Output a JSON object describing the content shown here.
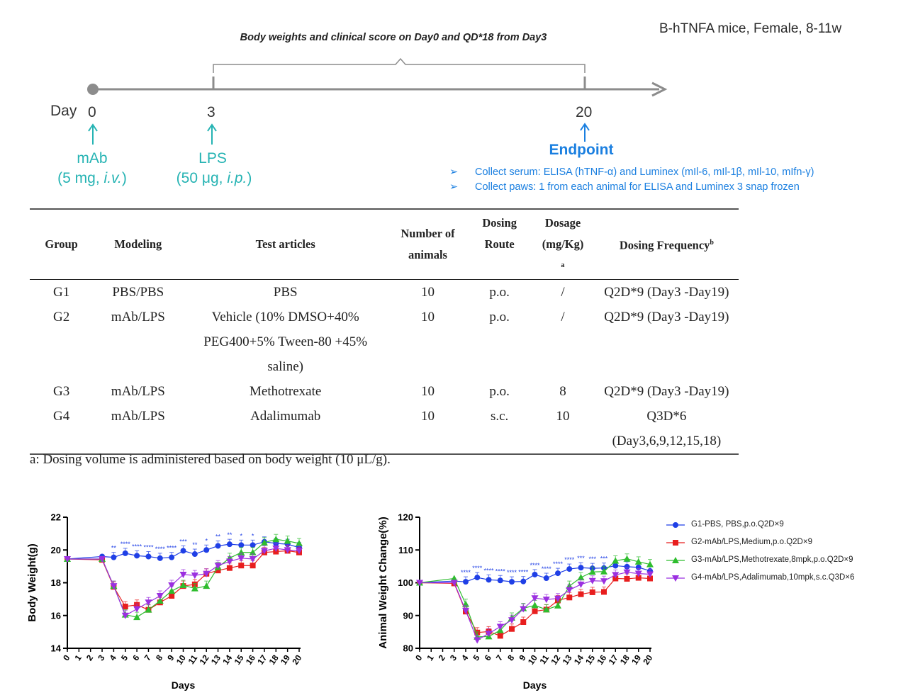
{
  "header_note": "B-hTNFA mice,  Female,  8-11w",
  "timeline": {
    "title": "Body weights and clinical score on Day0 and QD*18 from Day3",
    "day_word": "Day",
    "days": [
      "0",
      "3",
      "20"
    ],
    "mab": {
      "name": "mAb",
      "dose_prefix": "(5 mg, ",
      "route": "i.v.",
      "suffix": ")"
    },
    "lps": {
      "name": "LPS",
      "dose_prefix": "(50 μg, ",
      "route": "i.p.",
      "suffix": ")"
    },
    "endpoint": "Endpoint",
    "arrow_glyph": "➢",
    "bullets": [
      "Collect serum: ELISA (hTNF-α) and Luminex (mIl-6, mIl-1β, mIl-10, mIfn-γ)",
      "Collect paws: 1 from each animal for ELISA and Luminex 3 snap frozen"
    ],
    "colors": {
      "teal": "#25b3b3",
      "blue": "#1a7fe0",
      "line": "#8c8c8c"
    }
  },
  "table": {
    "headers": {
      "group": "Group",
      "modeling": "Modeling",
      "test_articles": "Test articles",
      "number_line1": "Number of",
      "number_line2": "animals",
      "route_line1": "Dosing",
      "route_line2": "Route",
      "dosage_line1": "Dosage",
      "dosage_line2": "(mg/Kg)",
      "dosage_sup": "a",
      "frequency": "Dosing Frequency",
      "frequency_sup": "b"
    },
    "rows": [
      {
        "group": "G1",
        "modeling": "PBS/PBS",
        "article": [
          "PBS"
        ],
        "n": "10",
        "route": "p.o.",
        "dosage": "/",
        "freq": [
          "Q2D*9 (Day3 -Day19)"
        ]
      },
      {
        "group": "G2",
        "modeling": "mAb/LPS",
        "article": [
          "Vehicle (10% DMSO+40%",
          "PEG400+5% Tween-80 +45%",
          "saline)"
        ],
        "n": "10",
        "route": "p.o.",
        "dosage": "/",
        "freq": [
          "Q2D*9 (Day3 -Day19)"
        ]
      },
      {
        "group": "G3",
        "modeling": "mAb/LPS",
        "article": [
          "Methotrexate"
        ],
        "n": "10",
        "route": "p.o.",
        "dosage": "8",
        "freq": [
          "Q2D*9 (Day3 -Day19)"
        ]
      },
      {
        "group": "G4",
        "modeling": "mAb/LPS",
        "article": [
          "Adalimumab"
        ],
        "n": "10",
        "route": "s.c.",
        "dosage": "10",
        "freq": [
          "Q3D*6",
          "(Day3,6,9,12,15,18)"
        ]
      }
    ],
    "footnote": "a: Dosing volume is administered based on body weight (10 μL/g)."
  },
  "chart_data": [
    {
      "type": "line",
      "title": "",
      "xlabel": "Days",
      "ylabel": "Body Weight(g)",
      "ylim": [
        14,
        22
      ],
      "yticks": [
        14,
        16,
        18,
        20,
        22
      ],
      "x": [
        0,
        3,
        4,
        5,
        6,
        7,
        8,
        9,
        10,
        11,
        12,
        13,
        14,
        15,
        16,
        17,
        18,
        19,
        20
      ],
      "series": [
        {
          "name": "G1-PBS, PBS,p.o.Q2D×9",
          "color": "#1f3fe6",
          "marker": "circle",
          "values": [
            19.45,
            19.6,
            19.55,
            19.8,
            19.65,
            19.6,
            19.5,
            19.55,
            19.95,
            19.75,
            20.0,
            20.25,
            20.35,
            20.3,
            20.3,
            20.5,
            20.4,
            20.35,
            20.15
          ]
        },
        {
          "name": "G2-mAb/LPS,Medium,p.o.Q2D×9",
          "color": "#e81e1e",
          "marker": "square",
          "values": [
            19.45,
            19.4,
            17.75,
            16.55,
            16.65,
            16.35,
            16.8,
            17.2,
            17.8,
            17.9,
            18.55,
            18.75,
            18.9,
            19.05,
            19.05,
            19.85,
            19.9,
            19.95,
            19.85
          ]
        },
        {
          "name": "G3-mAb/LPS,Methotrexate,8mpk,p.o.Q2D×9",
          "color": "#2ebd2e",
          "marker": "triangle-up",
          "values": [
            19.45,
            19.45,
            17.8,
            16.05,
            15.9,
            16.35,
            16.9,
            17.5,
            17.85,
            17.65,
            17.8,
            18.95,
            19.5,
            19.85,
            19.85,
            20.45,
            20.65,
            20.55,
            20.4
          ]
        },
        {
          "name": "G4-mAb/LPS,Adalimumab,10mpk,s.c.Q3D×6",
          "color": "#9b30e0",
          "marker": "triangle-down",
          "values": [
            19.45,
            19.45,
            17.8,
            16.0,
            16.4,
            16.8,
            17.2,
            17.85,
            18.5,
            18.45,
            18.55,
            19.05,
            19.3,
            19.5,
            19.45,
            19.95,
            20.1,
            20.0,
            19.95
          ]
        }
      ],
      "annotations": [
        {
          "x": 4,
          "text": "**"
        },
        {
          "x": 5,
          "text": "****"
        },
        {
          "x": 6,
          "text": "****"
        },
        {
          "x": 7,
          "text": "****"
        },
        {
          "x": 8,
          "text": "****"
        },
        {
          "x": 9,
          "text": "****"
        },
        {
          "x": 10,
          "text": "***"
        },
        {
          "x": 11,
          "text": "**"
        },
        {
          "x": 12,
          "text": "*"
        },
        {
          "x": 13,
          "text": "**"
        },
        {
          "x": 14,
          "text": "**"
        },
        {
          "x": 15,
          "text": "*"
        },
        {
          "x": 16,
          "text": "*"
        }
      ]
    },
    {
      "type": "line",
      "title": "",
      "xlabel": "Days",
      "ylabel": "Animal Weight Change(%)",
      "ylim": [
        80,
        120
      ],
      "yticks": [
        80,
        90,
        100,
        110,
        120
      ],
      "x": [
        0,
        3,
        4,
        5,
        6,
        7,
        8,
        9,
        10,
        11,
        12,
        13,
        14,
        15,
        16,
        17,
        18,
        19,
        20
      ],
      "series": [
        {
          "name": "G1-PBS, PBS,p.o.Q2D×9",
          "color": "#1f3fe6",
          "marker": "circle",
          "values": [
            100,
            100.5,
            100.3,
            101.6,
            100.9,
            100.7,
            100.3,
            100.4,
            102.5,
            101.4,
            102.9,
            104.2,
            104.6,
            104.4,
            104.5,
            105.2,
            104.9,
            104.7,
            103.6
          ]
        },
        {
          "name": "G2-mAb/LPS,Medium,p.o.Q2D×9",
          "color": "#e81e1e",
          "marker": "square",
          "values": [
            100,
            99.8,
            91.2,
            84.8,
            85.1,
            83.8,
            85.9,
            88.0,
            91.3,
            91.8,
            94.6,
            95.5,
            96.5,
            97.1,
            97.2,
            101.3,
            101.2,
            101.5,
            101.3
          ]
        },
        {
          "name": "G3-mAb/LPS,Methotrexate,8mpk,p.o.Q2D×9",
          "color": "#2ebd2e",
          "marker": "triangle-up",
          "values": [
            100,
            101.3,
            93.5,
            83.5,
            83.6,
            85.5,
            89.3,
            92.2,
            93.1,
            91.8,
            93.0,
            99.0,
            101.6,
            103.3,
            103.4,
            106.7,
            107.3,
            106.4,
            105.6
          ]
        },
        {
          "name": "G4-mAb/LPS,Adalimumab,10mpk,s.c.Q3D×6",
          "color": "#9b30e0",
          "marker": "triangle-down",
          "values": [
            100,
            100.0,
            91.5,
            82.5,
            84.5,
            86.6,
            88.6,
            92.0,
            95.3,
            94.9,
            95.2,
            97.8,
            99.5,
            100.6,
            100.5,
            102.4,
            103.2,
            102.8,
            102.6
          ]
        }
      ],
      "annotations": [
        {
          "x": 4,
          "text": "****"
        },
        {
          "x": 5,
          "text": "****"
        },
        {
          "x": 6,
          "text": "****"
        },
        {
          "x": 7,
          "text": "****"
        },
        {
          "x": 8,
          "text": "****"
        },
        {
          "x": 9,
          "text": "****"
        },
        {
          "x": 10,
          "text": "****"
        },
        {
          "x": 11,
          "text": "****"
        },
        {
          "x": 12,
          "text": "****"
        },
        {
          "x": 13,
          "text": "****"
        },
        {
          "x": 14,
          "text": "***"
        },
        {
          "x": 15,
          "text": "***"
        },
        {
          "x": 16,
          "text": "***"
        }
      ]
    }
  ]
}
